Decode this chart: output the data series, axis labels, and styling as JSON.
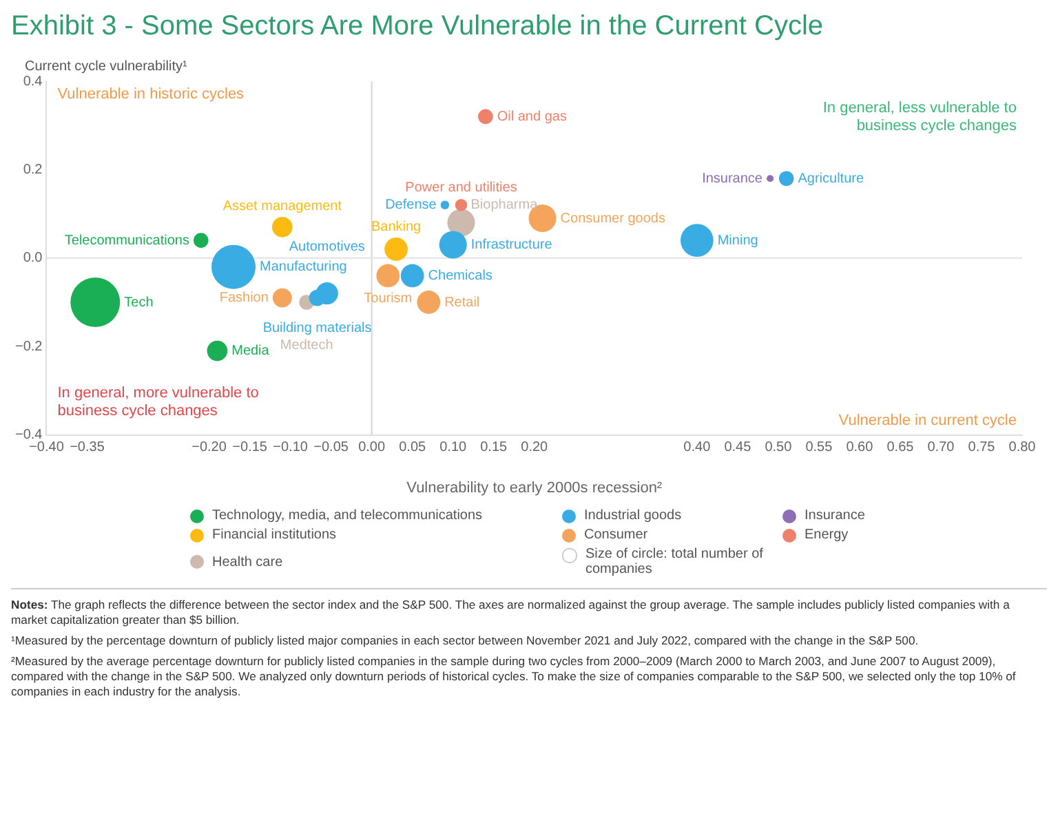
{
  "chart_data": {
    "type": "bubble",
    "title": "Exhibit 3 - Some Sectors Are More Vulnerable in the Current Cycle",
    "xlabel": "Vulnerability to early 2000s recession²",
    "ylabel": "Current cycle vulnerability¹",
    "relative": false,
    "xlim": [
      -0.4,
      0.8
    ],
    "xticks": [
      {
        "value": -0.4,
        "label": "−0.40"
      },
      {
        "value": -0.35,
        "label": "−0.35"
      },
      {
        "value": -0.2,
        "label": "−0.20"
      },
      {
        "value": -0.15,
        "label": "−0.15"
      },
      {
        "value": -0.1,
        "label": "−0.10"
      },
      {
        "value": -0.05,
        "label": "−0.05"
      },
      {
        "value": 0,
        "label": "0.00"
      },
      {
        "value": 0.05,
        "label": "0.05"
      },
      {
        "value": 0.1,
        "label": "0.10"
      },
      {
        "value": 0.15,
        "label": "0.15"
      },
      {
        "value": 0.2,
        "label": "0.20"
      },
      {
        "value": 0.4,
        "label": "0.40"
      },
      {
        "value": 0.45,
        "label": "0.45"
      },
      {
        "value": 0.5,
        "label": "0.50"
      },
      {
        "value": 0.55,
        "label": "0.55"
      },
      {
        "value": 0.6,
        "label": "0.60"
      },
      {
        "value": 0.65,
        "label": "0.65"
      },
      {
        "value": 0.7,
        "label": "0.70"
      },
      {
        "value": 0.75,
        "label": "0.75"
      },
      {
        "value": 0.8,
        "label": "0.80"
      }
    ],
    "ylim": [
      -0.4,
      0.4
    ],
    "yticks": [
      {
        "value": -0.4,
        "label": "−0.4"
      },
      {
        "value": -0.2,
        "label": "−0.2"
      },
      {
        "value": 0,
        "label": "0.0"
      },
      0.2,
      0.4
    ],
    "grid": false,
    "legend": "bottom",
    "ref_lines": [
      {
        "axis": "x",
        "value": 0,
        "color": "#d4d4d4"
      },
      {
        "axis": "y",
        "value": 0,
        "color": "#e2e2e2"
      }
    ],
    "series": [
      {
        "name": "Technology, media, and telecommunications",
        "color": "#1aaf54",
        "x": [
          -0.21,
          -0.34,
          -0.19
        ],
        "values": [
          0.04,
          -0.1,
          -0.21
        ],
        "sizes": [
          0.09,
          1,
          0.17
        ]
      },
      {
        "name": "Industrial goods",
        "color": "#3aace4",
        "x": [
          -0.17,
          -0.067,
          -0.055,
          0.05,
          0.1,
          0.09,
          0.4,
          0.51
        ],
        "values": [
          -0.02,
          -0.09,
          -0.08,
          -0.04,
          0.03,
          0.12,
          0.04,
          0.18
        ],
        "sizes": [
          0.79,
          0.11,
          0.2,
          0.22,
          0.31,
          0.03,
          0.44,
          0.09
        ]
      },
      {
        "name": "Insurance",
        "color": "#8c6fb5",
        "x": [
          0.49
        ],
        "values": [
          0.18
        ],
        "sizes": [
          0.02
        ]
      },
      {
        "name": "Financial institutions",
        "color": "#fdbb12",
        "x": [
          -0.11,
          0.03
        ],
        "values": [
          0.07,
          0.02
        ],
        "sizes": [
          0.17,
          0.22
        ]
      },
      {
        "name": "Consumer",
        "color": "#f4a45b",
        "x": [
          -0.11,
          0.02,
          0.07,
          0.21
        ],
        "values": [
          -0.09,
          -0.04,
          -0.1,
          0.09
        ],
        "sizes": [
          0.15,
          0.22,
          0.22,
          0.31
        ]
      },
      {
        "name": "Energy",
        "color": "#ef8069",
        "x": [
          0.14,
          0.11
        ],
        "values": [
          0.32,
          0.12
        ],
        "sizes": [
          0.09,
          0.06
        ]
      },
      {
        "name": "Health care",
        "color": "#cdb9ad",
        "x": [
          -0.08,
          0.11
        ],
        "values": [
          -0.1,
          0.08
        ],
        "sizes": [
          0.09,
          0.31
        ]
      }
    ],
    "annotations": [
      "Vulnerable in historic cycles",
      "In general, less vulnerable to business cycle changes",
      "In general, more vulnerable to business cycle changes",
      "Vulnerable in current cycle",
      "Size of circle: total number of companies",
      "Notes: The graph reflects the difference between the sector index and the S&P 500. The axes are normalized against the group average. The sample includes publicly listed companies with a market capitalization greater than $5 billion.",
      "¹Measured by the percentage downturn of publicly listed major companies in each sector between November 2021 and July 2022, compared with the change in the S&P 500.",
      "²Measured by the average percentage downturn for publicly listed companies in the sample during two cycles from 2000–2009 (March 2000 to March 2003, and June 2007 to August 2009), compared with the change in the S&P 500. We analyzed only downturn periods of historical cycles. To make the size of companies comparable to the S&P 500, we selected only the top 10% of companies in each industry for the analysis.",
      {
        "text": "Telecommunications",
        "x": -0.21,
        "y": 0.04
      },
      {
        "text": "Tech",
        "x": -0.34,
        "y": -0.1
      },
      {
        "text": "Media",
        "x": -0.19,
        "y": -0.21
      },
      {
        "text": "Manufacturing",
        "x": -0.17,
        "y": -0.02
      },
      {
        "text": "Building materials",
        "x": -0.067,
        "y": -0.09
      },
      {
        "text": "Automotives",
        "x": -0.055,
        "y": -0.08
      },
      {
        "text": "Chemicals",
        "x": 0.05,
        "y": -0.04
      },
      {
        "text": "Infrastructure",
        "x": 0.1,
        "y": 0.03
      },
      {
        "text": "Defense",
        "x": 0.09,
        "y": 0.12
      },
      {
        "text": "Mining",
        "x": 0.4,
        "y": 0.04
      },
      {
        "text": "Agriculture",
        "x": 0.51,
        "y": 0.18
      },
      {
        "text": "Insurance",
        "x": 0.49,
        "y": 0.18
      },
      {
        "text": "Asset management",
        "x": -0.11,
        "y": 0.07
      },
      {
        "text": "Banking",
        "x": 0.03,
        "y": 0.02
      },
      {
        "text": "Fashion",
        "x": -0.11,
        "y": -0.09
      },
      {
        "text": "Tourism",
        "x": 0.02,
        "y": -0.04
      },
      {
        "text": "Retail",
        "x": 0.07,
        "y": -0.1
      },
      {
        "text": "Consumer goods",
        "x": 0.21,
        "y": 0.09
      },
      {
        "text": "Oil and gas",
        "x": 0.14,
        "y": 0.32
      },
      {
        "text": "Power and utilities",
        "x": 0.11,
        "y": 0.12
      },
      {
        "text": "Medtech",
        "x": -0.08,
        "y": -0.1
      },
      {
        "text": "Biopharma",
        "x": 0.11,
        "y": 0.08
      }
    ]
  }
}
